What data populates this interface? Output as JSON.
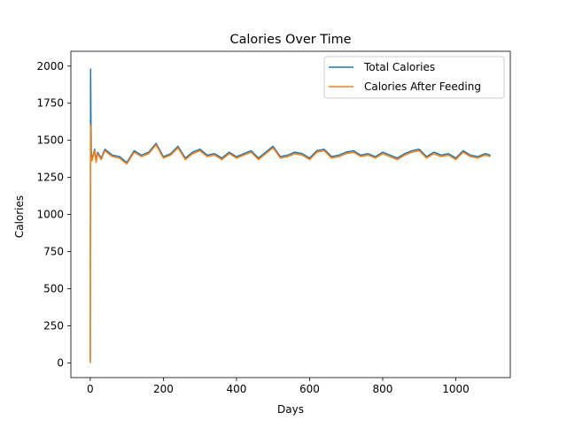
{
  "chart_data": {
    "type": "line",
    "title": "Calories Over Time",
    "xlabel": "Days",
    "ylabel": "Calories",
    "xlim": [
      -53,
      1149
    ],
    "ylim": [
      -99,
      2100
    ],
    "xticks": [
      0,
      200,
      400,
      600,
      800,
      1000
    ],
    "yticks": [
      0,
      250,
      500,
      750,
      1000,
      1250,
      1500,
      1750,
      2000
    ],
    "grid": false,
    "legend_position": "upper right",
    "series": [
      {
        "name": "Total Calories",
        "color": "#1f77b4",
        "x": [
          0,
          1,
          2,
          3,
          4,
          8,
          12,
          16,
          20,
          30,
          40,
          60,
          80,
          100,
          120,
          140,
          160,
          180,
          200,
          220,
          240,
          260,
          280,
          300,
          320,
          340,
          360,
          380,
          400,
          420,
          440,
          460,
          480,
          500,
          520,
          540,
          560,
          580,
          600,
          620,
          640,
          660,
          680,
          700,
          720,
          740,
          760,
          780,
          800,
          820,
          840,
          860,
          880,
          900,
          920,
          940,
          960,
          980,
          1000,
          1020,
          1040,
          1060,
          1080,
          1095
        ],
        "values": [
          0,
          1980,
          1600,
          1420,
          1380,
          1400,
          1440,
          1360,
          1420,
          1380,
          1440,
          1400,
          1390,
          1350,
          1430,
          1400,
          1420,
          1480,
          1390,
          1410,
          1460,
          1380,
          1420,
          1440,
          1400,
          1410,
          1380,
          1420,
          1390,
          1410,
          1430,
          1380,
          1420,
          1460,
          1390,
          1400,
          1420,
          1410,
          1380,
          1430,
          1440,
          1390,
          1400,
          1420,
          1430,
          1400,
          1410,
          1390,
          1420,
          1400,
          1380,
          1410,
          1430,
          1440,
          1390,
          1420,
          1400,
          1410,
          1380,
          1430,
          1400,
          1390,
          1410,
          1400
        ]
      },
      {
        "name": "Calories After Feeding",
        "color": "#ff7f0e",
        "x": [
          0,
          1,
          2,
          3,
          4,
          8,
          12,
          16,
          20,
          30,
          40,
          60,
          80,
          100,
          120,
          140,
          160,
          180,
          200,
          220,
          240,
          260,
          280,
          300,
          320,
          340,
          360,
          380,
          400,
          420,
          440,
          460,
          480,
          500,
          520,
          540,
          560,
          580,
          600,
          620,
          640,
          660,
          680,
          700,
          720,
          740,
          760,
          780,
          800,
          820,
          840,
          860,
          880,
          900,
          920,
          940,
          960,
          980,
          1000,
          1020,
          1040,
          1060,
          1080,
          1095
        ],
        "values": [
          0,
          1600,
          1400,
          1380,
          1360,
          1390,
          1430,
          1350,
          1410,
          1370,
          1430,
          1390,
          1380,
          1340,
          1420,
          1390,
          1410,
          1470,
          1380,
          1400,
          1450,
          1370,
          1410,
          1430,
          1390,
          1400,
          1370,
          1410,
          1380,
          1400,
          1420,
          1370,
          1410,
          1450,
          1380,
          1390,
          1410,
          1400,
          1370,
          1420,
          1430,
          1380,
          1390,
          1410,
          1420,
          1390,
          1400,
          1380,
          1410,
          1390,
          1370,
          1400,
          1420,
          1430,
          1380,
          1410,
          1390,
          1400,
          1370,
          1420,
          1390,
          1380,
          1400,
          1390
        ]
      }
    ]
  }
}
